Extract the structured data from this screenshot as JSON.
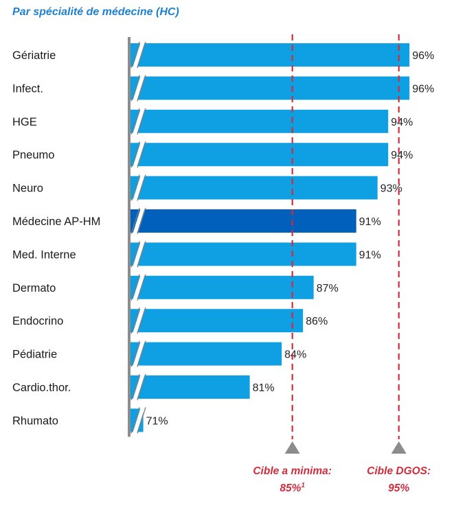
{
  "title": "Par spécialité de médecine (HC)",
  "colors": {
    "bar": "#0f9fe3",
    "bar_highlight": "#0060bb",
    "target": "#d42b3a",
    "axis": "#8c8c8c"
  },
  "chart_data": {
    "type": "bar",
    "orientation": "horizontal",
    "axis_break": true,
    "categories": [
      "Gériatrie",
      "Infect.",
      "HGE",
      "Pneumo",
      "Neuro",
      "Médecine AP-HM",
      "Med. Interne",
      "Dermato",
      "Endocrino",
      "Pédiatrie",
      "Cardio.thor.",
      "Rhumato"
    ],
    "values": [
      96,
      96,
      94,
      94,
      93,
      91,
      91,
      87,
      86,
      84,
      81,
      71
    ],
    "value_labels": [
      "96%",
      "96%",
      "94%",
      "94%",
      "93%",
      "91%",
      "91%",
      "87%",
      "86%",
      "84%",
      "81%",
      "71%"
    ],
    "highlight_category": "Médecine AP-HM",
    "xlim": [
      69.8,
      97.6
    ],
    "reference_lines": [
      {
        "value": 85,
        "label_line1": "Cible a minima:",
        "label_line2": "85%",
        "label_sup": "1"
      },
      {
        "value": 95,
        "label_line1": "Cible DGOS:",
        "label_line2": "95%",
        "label_sup": ""
      }
    ]
  }
}
